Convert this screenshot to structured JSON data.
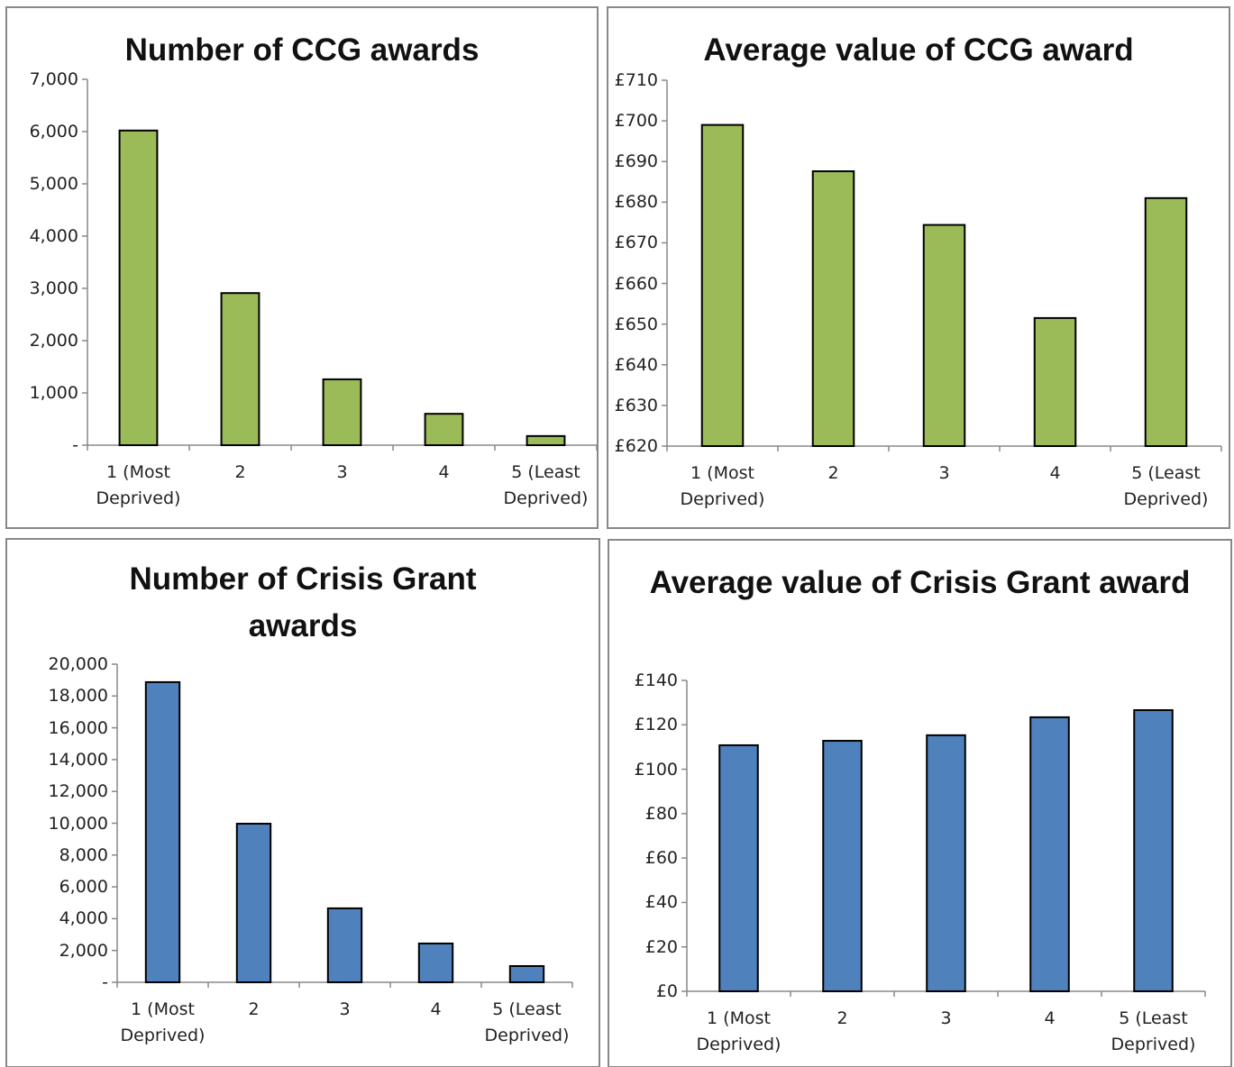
{
  "chart_data": [
    {
      "type": "bar",
      "title": "Number of CCG awards",
      "categories": [
        "1 (Most Deprived)",
        "2",
        "3",
        "4",
        "5 (Least Deprived)"
      ],
      "values": [
        6020,
        2910,
        1260,
        600,
        175
      ],
      "color": "#9bbb59",
      "ylim": [
        0,
        7000
      ],
      "yticks": [
        {
          "value": 0,
          "label": "-"
        },
        {
          "value": 1000,
          "label": "1,000"
        },
        {
          "value": 2000,
          "label": "2,000"
        },
        {
          "value": 3000,
          "label": "3,000"
        },
        {
          "value": 4000,
          "label": "4,000"
        },
        {
          "value": 5000,
          "label": "5,000"
        },
        {
          "value": 6000,
          "label": "6,000"
        },
        {
          "value": 7000,
          "label": "7,000"
        }
      ]
    },
    {
      "type": "bar",
      "title": "Average value of CCG award",
      "categories": [
        "1 (Most Deprived)",
        "2",
        "3",
        "4",
        "5 (Least Deprived)"
      ],
      "values": [
        699,
        687.6,
        674.4,
        651.5,
        681
      ],
      "color": "#9bbb59",
      "ylim": [
        620,
        710
      ],
      "yticks": [
        {
          "value": 620,
          "label": "£620"
        },
        {
          "value": 630,
          "label": "£630"
        },
        {
          "value": 640,
          "label": "£640"
        },
        {
          "value": 650,
          "label": "£650"
        },
        {
          "value": 660,
          "label": "£660"
        },
        {
          "value": 670,
          "label": "£670"
        },
        {
          "value": 680,
          "label": "£680"
        },
        {
          "value": 690,
          "label": "£690"
        },
        {
          "value": 700,
          "label": "£700"
        },
        {
          "value": 710,
          "label": "£710"
        }
      ]
    },
    {
      "type": "bar",
      "title": "Number of Crisis Grant awards",
      "categories": [
        "1 (Most Deprived)",
        "2",
        "3",
        "4",
        "5 (Least Deprived)"
      ],
      "values": [
        18870,
        9970,
        4650,
        2440,
        1020
      ],
      "color": "#4f81bd",
      "ylim": [
        0,
        20000
      ],
      "yticks": [
        {
          "value": 0,
          "label": "-"
        },
        {
          "value": 2000,
          "label": "2,000"
        },
        {
          "value": 4000,
          "label": "4,000"
        },
        {
          "value": 6000,
          "label": "6,000"
        },
        {
          "value": 8000,
          "label": "8,000"
        },
        {
          "value": 10000,
          "label": "10,000"
        },
        {
          "value": 12000,
          "label": "12,000"
        },
        {
          "value": 14000,
          "label": "14,000"
        },
        {
          "value": 16000,
          "label": "16,000"
        },
        {
          "value": 18000,
          "label": "18,000"
        },
        {
          "value": 20000,
          "label": "20,000"
        }
      ]
    },
    {
      "type": "bar",
      "title": "Average value of Crisis Grant award",
      "categories": [
        "1 (Most Deprived)",
        "2",
        "3",
        "4",
        "5 (Least Deprived)"
      ],
      "values": [
        110.8,
        112.8,
        115.3,
        123.4,
        126.6
      ],
      "color": "#4f81bd",
      "ylim": [
        0,
        140
      ],
      "yticks": [
        {
          "value": 0,
          "label": "£0"
        },
        {
          "value": 20,
          "label": "£20"
        },
        {
          "value": 40,
          "label": "£40"
        },
        {
          "value": 60,
          "label": "£60"
        },
        {
          "value": 80,
          "label": "£80"
        },
        {
          "value": 100,
          "label": "£100"
        },
        {
          "value": 120,
          "label": "£120"
        },
        {
          "value": 140,
          "label": "£140"
        }
      ]
    }
  ]
}
